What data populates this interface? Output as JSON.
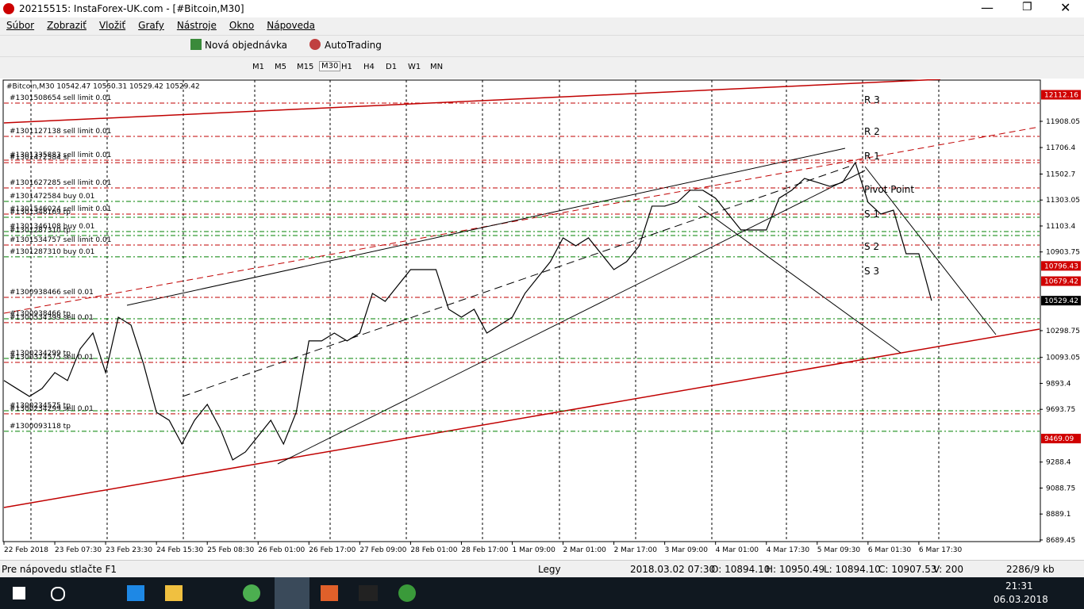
{
  "window": {
    "title": "20215515: InstaForex-UK.com - [#Bitcoin,M30]"
  },
  "menu": [
    "Súbor",
    "Zobraziť",
    "Vložiť",
    "Grafy",
    "Nástroje",
    "Okno",
    "Nápoveda"
  ],
  "toolbar": {
    "new_order": "Nová objednávka",
    "autotrading": "AutoTrading"
  },
  "timeframes": [
    "M1",
    "M5",
    "M15",
    "M30",
    "H1",
    "H4",
    "D1",
    "W1",
    "MN"
  ],
  "chart_data": {
    "type": "line",
    "header": "#Bitcoin,M30  10542.47 10550.31 10529.42 10529.42",
    "xlim": [
      0,
      326
    ],
    "ylim": [
      8677,
      12225
    ],
    "xticks": [
      {
        "value": 0,
        "label": "22 Feb 2018"
      },
      {
        "value": 16,
        "label": "23 Feb 07:30"
      },
      {
        "value": 32,
        "label": "23 Feb 23:30"
      },
      {
        "value": 48,
        "label": "24 Feb 15:30"
      },
      {
        "value": 64,
        "label": "25 Feb 08:30"
      },
      {
        "value": 80,
        "label": "26 Feb 01:00"
      },
      {
        "value": 96,
        "label": "26 Feb 17:00"
      },
      {
        "value": 112,
        "label": "27 Feb 09:00"
      },
      {
        "value": 128,
        "label": "28 Feb 01:00"
      },
      {
        "value": 144,
        "label": "28 Feb 17:00"
      },
      {
        "value": 160,
        "label": "1 Mar 09:00"
      },
      {
        "value": 176,
        "label": "2 Mar 01:00"
      },
      {
        "value": 192,
        "label": "2 Mar 17:00"
      },
      {
        "value": 208,
        "label": "3 Mar 09:00"
      },
      {
        "value": 224,
        "label": "4 Mar 01:00"
      },
      {
        "value": 240,
        "label": "4 Mar 17:30"
      },
      {
        "value": 256,
        "label": "5 Mar 09:30"
      },
      {
        "value": 272,
        "label": "6 Mar 01:30"
      },
      {
        "value": 288,
        "label": "6 Mar 17:30"
      }
    ],
    "yticks": [
      11908.05,
      11706.4,
      11502.7,
      11303.05,
      11103.4,
      10903.75,
      10298.75,
      10093.05,
      9893.4,
      9693.75,
      9288.4,
      9088.75,
      8889.1,
      8689.45
    ],
    "price_markers": [
      {
        "value": 12112.16,
        "color": "#d00000"
      },
      {
        "value": 10796.43,
        "color": "#d00000"
      },
      {
        "value": 10679.42,
        "color": "#d00000"
      },
      {
        "value": 10529.42,
        "color": "#000000"
      },
      {
        "value": 9469.09,
        "color": "#d00000"
      }
    ],
    "series": [
      {
        "name": "#Bitcoin",
        "color": "#000000",
        "x": [
          0,
          4,
          8,
          12,
          16,
          20,
          24,
          28,
          32,
          36,
          40,
          44,
          48,
          52,
          56,
          60,
          64,
          68,
          72,
          76,
          80,
          84,
          88,
          92,
          96,
          100,
          104,
          108,
          112,
          116,
          120,
          124,
          128,
          132,
          136,
          140,
          144,
          148,
          152,
          156,
          160,
          164,
          168,
          172,
          176,
          180,
          184,
          188,
          192,
          196,
          200,
          204,
          208,
          212,
          216,
          220,
          224,
          228,
          232,
          236,
          240,
          244,
          248,
          252,
          256,
          260,
          264,
          268,
          272,
          276,
          280,
          284,
          288,
          292
        ],
        "values": [
          9915,
          9854,
          9793,
          9854,
          9976,
          9915,
          10159,
          10280,
          9976,
          10402,
          10341,
          10037,
          9671,
          9610,
          9427,
          9610,
          9732,
          9549,
          9305,
          9366,
          9488,
          9610,
          9427,
          9671,
          10220,
          10220,
          10280,
          10220,
          10280,
          10585,
          10524,
          10646,
          10768,
          10768,
          10768,
          10463,
          10402,
          10463,
          10280,
          10341,
          10402,
          10585,
          10707,
          10829,
          11012,
          10951,
          11012,
          10890,
          10768,
          10829,
          10951,
          11256,
          11256,
          11286,
          11378,
          11378,
          11317,
          11195,
          11073,
          11073,
          11073,
          11317,
          11378,
          11469,
          11439,
          11408,
          11439,
          11591,
          11286,
          11195,
          11225,
          10890,
          10890,
          10529.42
        ]
      }
    ],
    "orders": [
      {
        "label": "#1301508654 sell limit 0.01",
        "price": 12048,
        "color": "#c00000"
      },
      {
        "label": "#1301127138 sell limit 0.01",
        "price": 11792,
        "color": "#c00000"
      },
      {
        "label": "#1301335883 sell limit 0.01",
        "price": 11609,
        "color": "#c00000"
      },
      {
        "label": "#1301472584 sl",
        "price": 11590,
        "color": "#c00000"
      },
      {
        "label": "#1301627285 sell limit 0.01",
        "price": 11396,
        "color": "#c00000"
      },
      {
        "label": "#1301472584 buy 0.01",
        "price": 11292,
        "color": "#008000"
      },
      {
        "label": "#1301546024 sell limit 0.01",
        "price": 11195,
        "color": "#c00000"
      },
      {
        "label": "#1301348169 tp",
        "price": 11170,
        "color": "#008000"
      },
      {
        "label": "#1301346108 buy 0.01",
        "price": 11061,
        "color": "#008000"
      },
      {
        "label": "#1301287310 tp",
        "price": 11030,
        "color": "#008000"
      },
      {
        "label": "#1301534757 sell limit 0.01",
        "price": 10957,
        "color": "#c00000"
      },
      {
        "label": "#1301287310 buy 0.01",
        "price": 10866,
        "color": "#008000"
      },
      {
        "label": "#1300938466 sell 0.01",
        "price": 10555,
        "color": "#c00000"
      },
      {
        "label": "#1300938466 tp",
        "price": 10390,
        "color": "#008000"
      },
      {
        "label": "#1300534399 sell 0.01",
        "price": 10360,
        "color": "#c00000"
      },
      {
        "label": "#1300234299 tp",
        "price": 10085,
        "color": "#008000"
      },
      {
        "label": "#1300374575 sell 0.01",
        "price": 10055,
        "color": "#c00000"
      },
      {
        "label": "#1300234575 tp",
        "price": 9683,
        "color": "#008000"
      },
      {
        "label": "#1300234299 sell 0.01",
        "price": 9659,
        "color": "#c00000"
      },
      {
        "label": "#1300093118 tp",
        "price": 9525,
        "color": "#008000"
      }
    ],
    "pivots": [
      "R 3",
      "R 2",
      "R 1",
      "Pivot Point",
      "S 1",
      "S 2",
      "S 3"
    ]
  },
  "status": {
    "help": "Pre nápovedu stlačte F1",
    "profile": "Legy",
    "time": "2018.03.02 07:30",
    "open": "O: 10894.10",
    "high": "H: 10950.49",
    "low": "L: 10894.10",
    "close": "C: 10907.53",
    "volume": "V: 200",
    "traffic": "2286/9 kb"
  },
  "taskbar": {
    "time": "21:31",
    "date": "06.03.2018"
  }
}
